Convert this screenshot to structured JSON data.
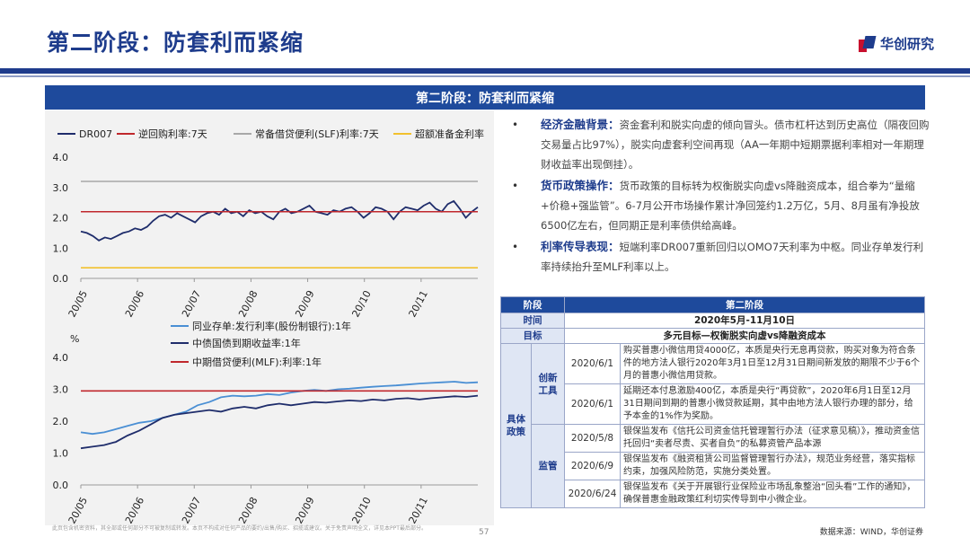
{
  "header": {
    "title": "第二阶段：防套利而紧缩",
    "logo_text": "华创研究"
  },
  "banner": {
    "title": "第二阶段：防套利而紧缩"
  },
  "colors": {
    "primary": "#1e3c8c",
    "accent_red": "#c8102e",
    "banner": "#1e4a9c"
  },
  "chart_data": [
    {
      "type": "line",
      "legend": [
        "DR007",
        "逆回购利率:7天",
        "常备借贷便利(SLF)利率:7天",
        "超额准备金利率"
      ],
      "x_ticks": [
        "20/05",
        "20/06",
        "20/07",
        "20/08",
        "20/09",
        "20/10",
        "20/11"
      ],
      "ylim": [
        0,
        4
      ],
      "y_ticks": [
        "4.0",
        "3.0",
        "2.0",
        "1.0",
        "0.0"
      ],
      "series": [
        {
          "name": "DR007",
          "color": "#1f2d6b",
          "values": [
            1.55,
            1.5,
            1.4,
            1.25,
            1.35,
            1.3,
            1.4,
            1.5,
            1.55,
            1.65,
            1.6,
            1.7,
            1.9,
            2.05,
            2.1,
            2.0,
            2.15,
            2.05,
            1.95,
            1.85,
            2.05,
            2.15,
            2.2,
            2.1,
            2.3,
            2.15,
            2.2,
            2.05,
            2.25,
            2.15,
            2.2,
            2.05,
            1.95,
            2.2,
            2.3,
            2.15,
            2.2,
            2.3,
            2.4,
            2.2,
            2.15,
            2.1,
            2.25,
            2.2,
            2.3,
            2.35,
            2.2,
            2.0,
            2.15,
            2.35,
            2.3,
            2.2,
            1.95,
            2.2,
            2.35,
            2.3,
            2.25,
            2.4,
            2.5,
            2.3,
            2.2,
            2.45,
            2.55,
            2.3,
            2.0,
            2.2,
            2.35
          ]
        },
        {
          "name": "逆回购利率:7天",
          "color": "#c0282d",
          "constant": 2.2
        },
        {
          "name": "常备借贷便利(SLF)利率:7天",
          "color": "#a8a8a8",
          "constant": 3.2
        },
        {
          "name": "超额准备金利率",
          "color": "#f2c12e",
          "constant": 0.35
        }
      ]
    },
    {
      "type": "line",
      "legend": [
        "同业存单:发行利率(股份制银行):1年",
        "中债国债到期收益率:1年",
        "中期借贷便利(MLF):利率:1年"
      ],
      "unit_label": "%",
      "x_ticks": [
        "20/05",
        "20/06",
        "20/07",
        "20/08",
        "20/09",
        "20/10",
        "20/11"
      ],
      "ylim": [
        0,
        4
      ],
      "y_ticks": [
        "4.0",
        "3.0",
        "2.0",
        "1.0",
        "0.0"
      ],
      "series": [
        {
          "name": "同业存单:发行利率(股份制银行):1年",
          "color": "#4a8fd4",
          "values": [
            1.65,
            1.6,
            1.65,
            1.75,
            1.85,
            1.95,
            2.0,
            2.1,
            2.2,
            2.3,
            2.5,
            2.6,
            2.75,
            2.8,
            2.78,
            2.8,
            2.85,
            2.82,
            2.9,
            2.95,
            2.98,
            2.95,
            3.0,
            3.02,
            3.05,
            3.08,
            3.1,
            3.12,
            3.15,
            3.18,
            3.2,
            3.22,
            3.24,
            3.2,
            3.22
          ]
        },
        {
          "name": "中债国债到期收益率:1年",
          "color": "#1f2d6b",
          "values": [
            1.15,
            1.2,
            1.25,
            1.35,
            1.55,
            1.7,
            1.9,
            2.1,
            2.2,
            2.25,
            2.3,
            2.35,
            2.3,
            2.4,
            2.45,
            2.4,
            2.5,
            2.55,
            2.5,
            2.55,
            2.6,
            2.58,
            2.62,
            2.65,
            2.63,
            2.68,
            2.65,
            2.7,
            2.72,
            2.68,
            2.72,
            2.75,
            2.78,
            2.76,
            2.8
          ]
        },
        {
          "name": "中期借贷便利(MLF):利率:1年",
          "color": "#c0282d",
          "constant": 2.95
        }
      ]
    }
  ],
  "bullets": [
    {
      "head": "经济金融背景：",
      "text": "资金套利和脱实向虚的倾向冒头。债市杠杆达到历史高位（隔夜回购交易量占比97%），脱实向虚套利空间再现（AA一年期中短期票据利率相对一年期理财收益率出现倒挂）。"
    },
    {
      "head": "货币政策操作：",
      "text": "货币政策的目标转为权衡脱实向虚vs降融资成本，组合拳为“量缩+价稳+强监管”。6-7月公开市场操作累计净回笼约1.2万亿，5月、8月虽有净投放6500亿左右，但同期正是利率债供给高峰。"
    },
    {
      "head": "利率传导表现：",
      "text": "短端利率DR007重新回归以OMO7天利率为中枢。同业存单发行利率持续抬升至MLF利率以上。"
    }
  ],
  "table": {
    "header": {
      "col1": "阶段",
      "col2": "第二阶段"
    },
    "time_label": "时间",
    "time_value": "2020年5月-11月10日",
    "goal_label": "目标",
    "goal_value": "多元目标—权衡脱实向虚vs降融资成本",
    "group_label": "具体政策",
    "sub1_label": "创新工具",
    "sub2_label": "监管",
    "rows": [
      {
        "date": "2020/6/1",
        "text": "购买普惠小微信用贷4000亿，本质是央行无息再贷款，购买对象为符合条件的地方法人银行2020年3月1日至12月31日期间新发放的期限不少于6个月的普惠小微信用贷款。"
      },
      {
        "date": "2020/6/1",
        "text": "延期还本付息激励400亿，本质是央行“再贷款”，2020年6月1日至12月31日期间到期的普惠小微贷款延期，其中由地方法人银行办理的部分，给予本金的1%作为奖励。"
      },
      {
        "date": "2020/5/8",
        "text": "银保监发布《信托公司资金信托管理暂行办法（征求意见稿）》，推动资金信托回归“卖者尽责、买者自负”的私募资管产品本源"
      },
      {
        "date": "2020/6/9",
        "text": "银保监发布《融资租赁公司监督管理暂行办法》，规范业务经营，落实指标约束，加强风险防范，实施分类处置。"
      },
      {
        "date": "2020/6/24",
        "text": "银保监发布《关于开展银行业保险业市场乱象整治“回头看”工作的通知》，确保普惠金融政策红利切实传导到中小微企业。"
      }
    ]
  },
  "footer": {
    "disclaimer": "此页包含机密资料，其全部或任何部分不可被复制或转发。本页不构成对任何产品的要约/出售/购买、招揽或建议。关于免责声明全文，详见本PPT最后部分。",
    "page_number": "57",
    "source": "数据来源：WIND，华创证券"
  }
}
